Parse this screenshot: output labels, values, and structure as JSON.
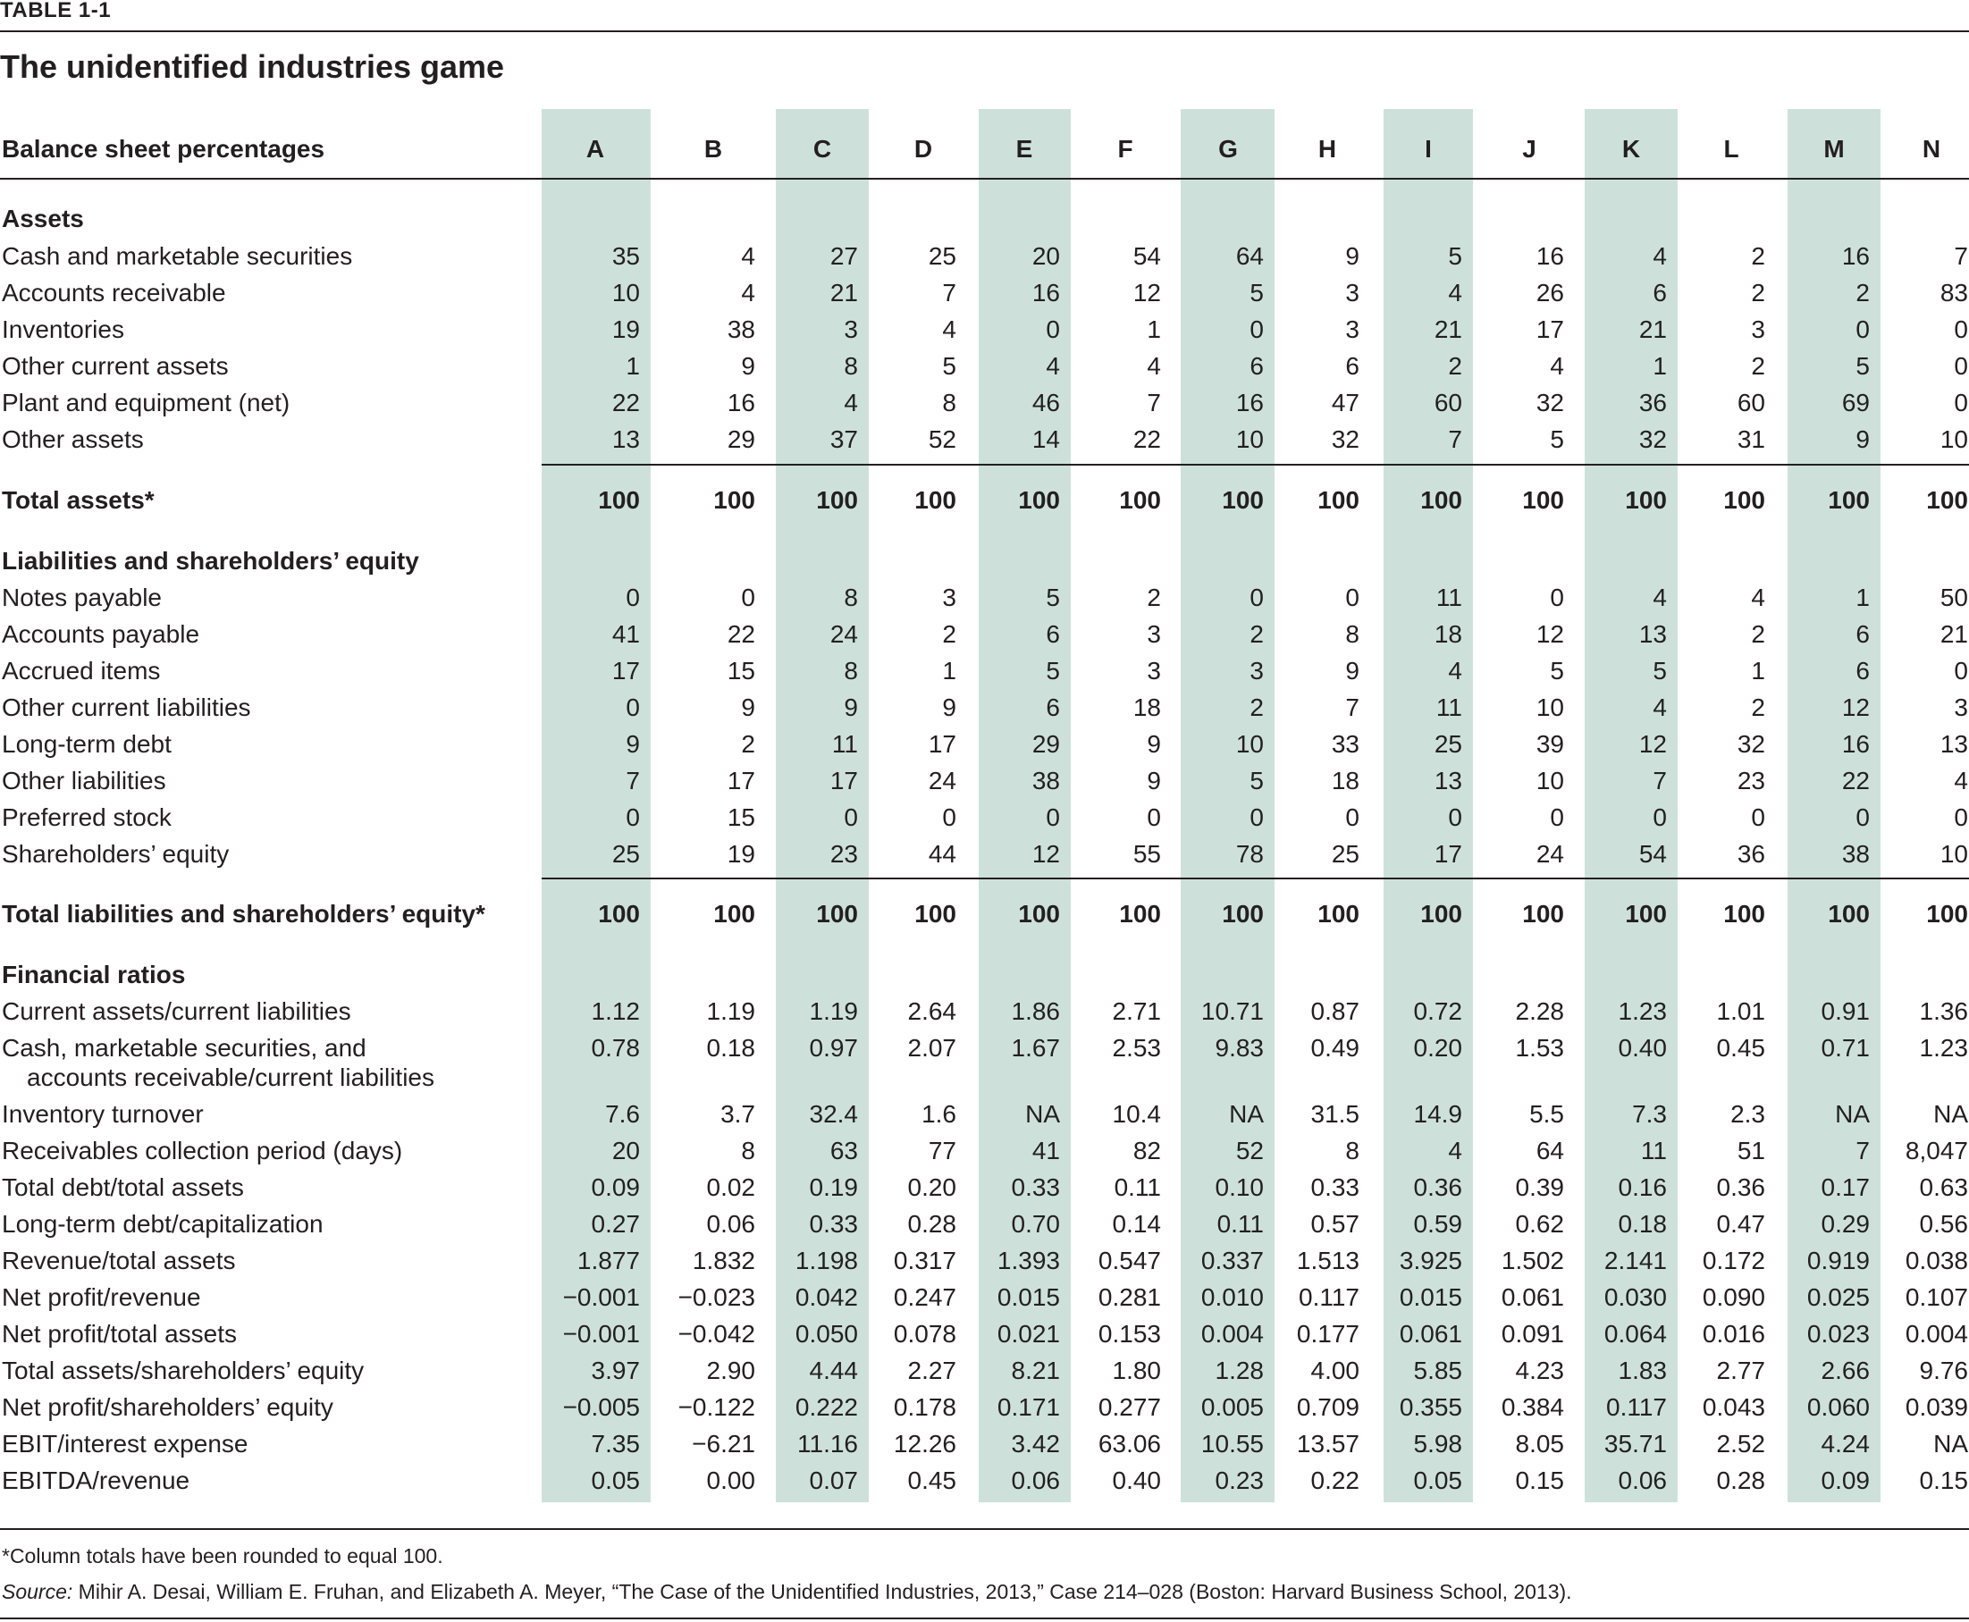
{
  "table_label": "TABLE 1-1",
  "title": "The unidentified industries game",
  "header_label": "Balance sheet percentages",
  "columns": [
    "A",
    "B",
    "C",
    "D",
    "E",
    "F",
    "G",
    "H",
    "I",
    "J",
    "K",
    "L",
    "M",
    "N"
  ],
  "rows": [
    {
      "kind": "section",
      "label": "Assets"
    },
    {
      "kind": "row",
      "label": "Cash and marketable securities",
      "values": [
        "35",
        "4",
        "27",
        "25",
        "20",
        "54",
        "64",
        "9",
        "5",
        "16",
        "4",
        "2",
        "16",
        "7"
      ]
    },
    {
      "kind": "row",
      "label": "Accounts receivable",
      "values": [
        "10",
        "4",
        "21",
        "7",
        "16",
        "12",
        "5",
        "3",
        "4",
        "26",
        "6",
        "2",
        "2",
        "83"
      ]
    },
    {
      "kind": "row",
      "label": "Inventories",
      "values": [
        "19",
        "38",
        "3",
        "4",
        "0",
        "1",
        "0",
        "3",
        "21",
        "17",
        "21",
        "3",
        "0",
        "0"
      ]
    },
    {
      "kind": "row",
      "label": "Other current assets",
      "values": [
        "1",
        "9",
        "8",
        "5",
        "4",
        "4",
        "6",
        "6",
        "2",
        "4",
        "1",
        "2",
        "5",
        "0"
      ]
    },
    {
      "kind": "row",
      "label": "Plant and equipment (net)",
      "values": [
        "22",
        "16",
        "4",
        "8",
        "46",
        "7",
        "16",
        "47",
        "60",
        "32",
        "36",
        "60",
        "69",
        "0"
      ]
    },
    {
      "kind": "row",
      "label": "Other assets",
      "values": [
        "13",
        "29",
        "37",
        "52",
        "14",
        "22",
        "10",
        "32",
        "7",
        "5",
        "32",
        "31",
        "9",
        "10"
      ]
    },
    {
      "kind": "total",
      "label": "Total assets*",
      "values": [
        "100",
        "100",
        "100",
        "100",
        "100",
        "100",
        "100",
        "100",
        "100",
        "100",
        "100",
        "100",
        "100",
        "100"
      ]
    },
    {
      "kind": "section",
      "label": "Liabilities and shareholders’ equity"
    },
    {
      "kind": "row",
      "label": "Notes payable",
      "values": [
        "0",
        "0",
        "8",
        "3",
        "5",
        "2",
        "0",
        "0",
        "11",
        "0",
        "4",
        "4",
        "1",
        "50"
      ]
    },
    {
      "kind": "row",
      "label": "Accounts payable",
      "values": [
        "41",
        "22",
        "24",
        "2",
        "6",
        "3",
        "2",
        "8",
        "18",
        "12",
        "13",
        "2",
        "6",
        "21"
      ]
    },
    {
      "kind": "row",
      "label": "Accrued items",
      "values": [
        "17",
        "15",
        "8",
        "1",
        "5",
        "3",
        "3",
        "9",
        "4",
        "5",
        "5",
        "1",
        "6",
        "0"
      ]
    },
    {
      "kind": "row",
      "label": "Other current liabilities",
      "values": [
        "0",
        "9",
        "9",
        "9",
        "6",
        "18",
        "2",
        "7",
        "11",
        "10",
        "4",
        "2",
        "12",
        "3"
      ]
    },
    {
      "kind": "row",
      "label": "Long-term debt",
      "values": [
        "9",
        "2",
        "11",
        "17",
        "29",
        "9",
        "10",
        "33",
        "25",
        "39",
        "12",
        "32",
        "16",
        "13"
      ]
    },
    {
      "kind": "row",
      "label": "Other liabilities",
      "values": [
        "7",
        "17",
        "17",
        "24",
        "38",
        "9",
        "5",
        "18",
        "13",
        "10",
        "7",
        "23",
        "22",
        "4"
      ]
    },
    {
      "kind": "row",
      "label": "Preferred stock",
      "values": [
        "0",
        "15",
        "0",
        "0",
        "0",
        "0",
        "0",
        "0",
        "0",
        "0",
        "0",
        "0",
        "0",
        "0"
      ]
    },
    {
      "kind": "row",
      "label": "Shareholders’ equity",
      "values": [
        "25",
        "19",
        "23",
        "44",
        "12",
        "55",
        "78",
        "25",
        "17",
        "24",
        "54",
        "36",
        "38",
        "10"
      ]
    },
    {
      "kind": "total",
      "label": "Total liabilities and shareholders’ equity*",
      "values": [
        "100",
        "100",
        "100",
        "100",
        "100",
        "100",
        "100",
        "100",
        "100",
        "100",
        "100",
        "100",
        "100",
        "100"
      ]
    },
    {
      "kind": "section",
      "label": "Financial ratios"
    },
    {
      "kind": "row",
      "label": "Current assets/current liabilities",
      "values": [
        "1.12",
        "1.19",
        "1.19",
        "2.64",
        "1.86",
        "2.71",
        "10.71",
        "0.87",
        "0.72",
        "2.28",
        "1.23",
        "1.01",
        "0.91",
        "1.36"
      ]
    },
    {
      "kind": "row2",
      "label": "Cash, marketable securities, and",
      "label2": "accounts receivable/current liabilities",
      "values": [
        "0.78",
        "0.18",
        "0.97",
        "2.07",
        "1.67",
        "2.53",
        "9.83",
        "0.49",
        "0.20",
        "1.53",
        "0.40",
        "0.45",
        "0.71",
        "1.23"
      ]
    },
    {
      "kind": "row",
      "label": "Inventory turnover",
      "values": [
        "7.6",
        "3.7",
        "32.4",
        "1.6",
        "NA",
        "10.4",
        "NA",
        "31.5",
        "14.9",
        "5.5",
        "7.3",
        "2.3",
        "NA",
        "NA"
      ]
    },
    {
      "kind": "row",
      "label": "Receivables collection period (days)",
      "values": [
        "20",
        "8",
        "63",
        "77",
        "41",
        "82",
        "52",
        "8",
        "4",
        "64",
        "11",
        "51",
        "7",
        "8,047"
      ]
    },
    {
      "kind": "row",
      "label": "Total debt/total assets",
      "values": [
        "0.09",
        "0.02",
        "0.19",
        "0.20",
        "0.33",
        "0.11",
        "0.10",
        "0.33",
        "0.36",
        "0.39",
        "0.16",
        "0.36",
        "0.17",
        "0.63"
      ]
    },
    {
      "kind": "row",
      "label": "Long-term debt/capitalization",
      "values": [
        "0.27",
        "0.06",
        "0.33",
        "0.28",
        "0.70",
        "0.14",
        "0.11",
        "0.57",
        "0.59",
        "0.62",
        "0.18",
        "0.47",
        "0.29",
        "0.56"
      ]
    },
    {
      "kind": "row",
      "label": "Revenue/total assets",
      "values": [
        "1.877",
        "1.832",
        "1.198",
        "0.317",
        "1.393",
        "0.547",
        "0.337",
        "1.513",
        "3.925",
        "1.502",
        "2.141",
        "0.172",
        "0.919",
        "0.038"
      ]
    },
    {
      "kind": "row",
      "label": "Net profit/revenue",
      "values": [
        "−0.001",
        "−0.023",
        "0.042",
        "0.247",
        "0.015",
        "0.281",
        "0.010",
        "0.117",
        "0.015",
        "0.061",
        "0.030",
        "0.090",
        "0.025",
        "0.107"
      ]
    },
    {
      "kind": "row",
      "label": "Net profit/total assets",
      "values": [
        "−0.001",
        "−0.042",
        "0.050",
        "0.078",
        "0.021",
        "0.153",
        "0.004",
        "0.177",
        "0.061",
        "0.091",
        "0.064",
        "0.016",
        "0.023",
        "0.004"
      ]
    },
    {
      "kind": "row",
      "label": "Total assets/shareholders’ equity",
      "values": [
        "3.97",
        "2.90",
        "4.44",
        "2.27",
        "8.21",
        "1.80",
        "1.28",
        "4.00",
        "5.85",
        "4.23",
        "1.83",
        "2.77",
        "2.66",
        "9.76"
      ]
    },
    {
      "kind": "row",
      "label": "Net profit/shareholders’ equity",
      "values": [
        "−0.005",
        "−0.122",
        "0.222",
        "0.178",
        "0.171",
        "0.277",
        "0.005",
        "0.709",
        "0.355",
        "0.384",
        "0.117",
        "0.043",
        "0.060",
        "0.039"
      ]
    },
    {
      "kind": "row",
      "label": "EBIT/interest expense",
      "values": [
        "7.35",
        "−6.21",
        "11.16",
        "12.26",
        "3.42",
        "63.06",
        "10.55",
        "13.57",
        "5.98",
        "8.05",
        "35.71",
        "2.52",
        "4.24",
        "NA"
      ]
    },
    {
      "kind": "row",
      "label": "EBITDA/revenue",
      "values": [
        "0.05",
        "0.00",
        "0.07",
        "0.45",
        "0.06",
        "0.40",
        "0.23",
        "0.22",
        "0.05",
        "0.15",
        "0.06",
        "0.28",
        "0.09",
        "0.15"
      ]
    }
  ],
  "footnote": "*Column totals have been rounded to equal 100.",
  "source_label": "Source:",
  "source_text": " Mihir A. Desai, William E. Fruhan, and Elizabeth A. Meyer, “The Case of the Unidentified Industries, 2013,” Case 214–028 (Boston: Harvard Business School, 2013).",
  "colors": {
    "band": "#cde1da",
    "text": "#231f20"
  }
}
